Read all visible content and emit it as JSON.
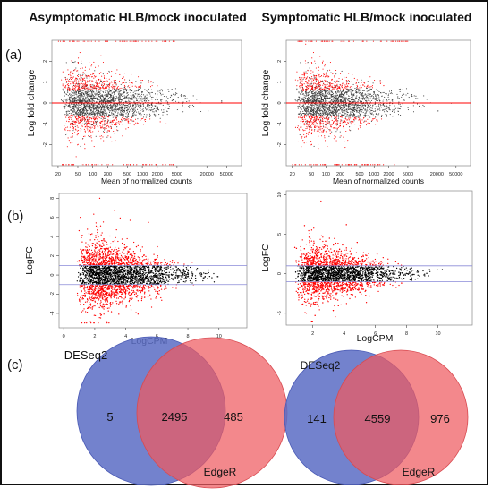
{
  "column_titles": [
    "Asymptomatic HLB/mock inoculated",
    "Symptomatic HLB/mock inoculated"
  ],
  "panel_labels": [
    "(a)",
    "(b)",
    "(c)"
  ],
  "colors": {
    "gray": "#3a3a3a",
    "black": "#000000",
    "red": "#ff0000",
    "blue_line": "#8a8ad8",
    "venn_blue": "#5b6cc4",
    "venn_red": "#ee5a5f"
  },
  "chart_data": [
    {
      "type": "scatter",
      "panel": "a-left",
      "xlabel": "Mean of normalized counts",
      "ylabel": "Log fold change",
      "x_scale": "log",
      "xlim": [
        15,
        100000
      ],
      "ylim": [
        -3,
        3
      ],
      "xticks": [
        20,
        50,
        100,
        200,
        500,
        1000,
        2000,
        5000,
        20000,
        50000
      ],
      "xtick_labels": [
        "20",
        "50",
        "100",
        "200",
        "500",
        "1000",
        "2000",
        "5000",
        "20000",
        "50000"
      ],
      "yticks": [
        -2,
        -1,
        0,
        1,
        2
      ],
      "ytick_labels": [
        "-2",
        "-1",
        "0",
        "1",
        "2"
      ],
      "series": [
        {
          "color": "#3a3a3a"
        },
        {
          "color": "#ff0000"
        }
      ],
      "reference_line": {
        "y": 0,
        "color": "#ff0000"
      }
    },
    {
      "type": "scatter",
      "panel": "a-right",
      "xlabel": "Mean of normalized counts",
      "ylabel": "Log fold change",
      "x_scale": "log",
      "xlim": [
        15,
        100000
      ],
      "ylim": [
        -3,
        3
      ],
      "xticks": [
        20,
        50,
        100,
        200,
        500,
        1000,
        2000,
        5000,
        20000,
        50000
      ],
      "xtick_labels": [
        "20",
        "50",
        "100",
        "200",
        "500",
        "1000",
        "2000",
        "5000",
        "20000",
        "50000"
      ],
      "yticks": [
        -2,
        -1,
        0,
        1,
        2
      ],
      "ytick_labels": [
        "-2",
        "-1",
        "0",
        "1",
        "2"
      ],
      "series": [
        {
          "color": "#3a3a3a"
        },
        {
          "color": "#ff0000"
        }
      ],
      "reference_line": {
        "y": 0,
        "color": "#ff0000"
      }
    },
    {
      "type": "scatter",
      "panel": "b-left",
      "xlabel": "LogCPM",
      "ylabel": "LogFC",
      "xlim": [
        -0.3,
        11.8
      ],
      "ylim": [
        -5.5,
        8.5
      ],
      "xticks": [
        0,
        2,
        4,
        6,
        8,
        10
      ],
      "xtick_labels": [
        "0",
        "2",
        "4",
        "6",
        "8",
        "10"
      ],
      "yticks": [
        -4,
        -2,
        0,
        2,
        4,
        6,
        8
      ],
      "ytick_labels": [
        "-4",
        "-2",
        "0",
        "2",
        "4",
        "6",
        "8"
      ],
      "series": [
        {
          "color": "#000000"
        },
        {
          "color": "#ff0000"
        }
      ],
      "threshold_lines": [
        1,
        -1
      ]
    },
    {
      "type": "scatter",
      "panel": "b-right",
      "xlabel": "LogCPM",
      "ylabel": "LogFC",
      "xlim": [
        0.3,
        12.2
      ],
      "ylim": [
        -6.5,
        10.5
      ],
      "xticks": [
        2,
        4,
        6,
        8,
        10
      ],
      "xtick_labels": [
        "2",
        "4",
        "6",
        "8",
        "10"
      ],
      "yticks": [
        -5,
        0,
        5,
        10
      ],
      "ytick_labels": [
        "-5",
        "0",
        "5",
        "10"
      ],
      "series": [
        {
          "color": "#000000"
        },
        {
          "color": "#ff0000"
        }
      ],
      "threshold_lines": [
        1,
        -1
      ]
    },
    {
      "type": "venn",
      "panel": "c-left",
      "sets": [
        {
          "name": "DESeq2",
          "only": 5
        },
        {
          "name": "EdgeR",
          "only": 485
        }
      ],
      "intersection": 2495
    },
    {
      "type": "venn",
      "panel": "c-right",
      "sets": [
        {
          "name": "DESeq2",
          "only": 141
        },
        {
          "name": "EdgeR",
          "only": 976
        }
      ],
      "intersection": 4559
    }
  ]
}
